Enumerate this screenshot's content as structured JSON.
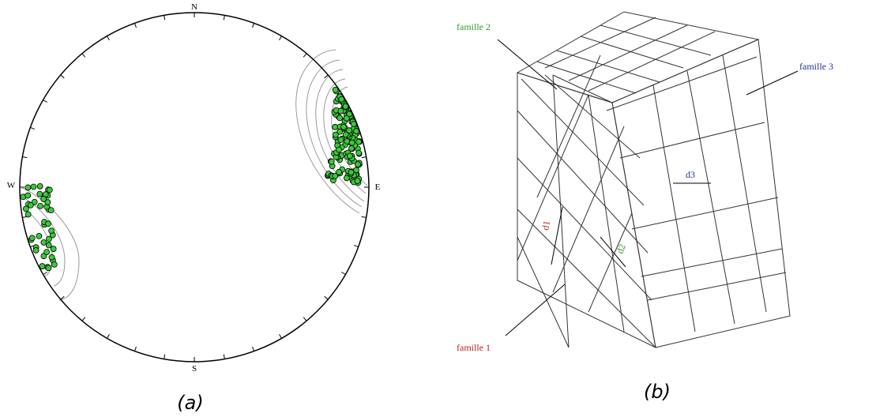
{
  "panel_a": {
    "north": "N",
    "south": "S",
    "east": "E",
    "west": "W",
    "caption": "(a)"
  },
  "panel_b": {
    "family_1": "famille 1",
    "family_2": "famille 2",
    "family_3": "famille 3",
    "spacing_1": "d1",
    "spacing_2": "d2",
    "spacing_3": "d3",
    "caption": "(b)"
  }
}
